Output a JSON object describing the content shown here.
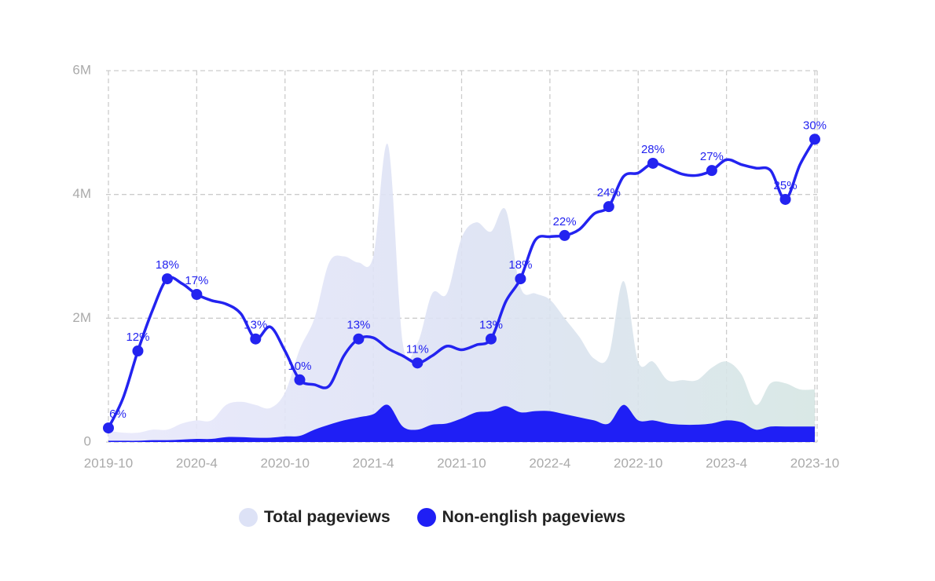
{
  "chart_data": {
    "type": "area-line",
    "x": [
      "2019-10",
      null,
      null,
      null,
      null,
      null,
      "2020-4",
      null,
      null,
      null,
      null,
      null,
      "2020-10",
      null,
      null,
      null,
      null,
      null,
      "2021-4",
      null,
      null,
      null,
      null,
      null,
      "2021-10",
      null,
      null,
      null,
      null,
      null,
      "2022-4",
      null,
      null,
      null,
      null,
      null,
      "2022-10",
      null,
      null,
      null,
      null,
      null,
      "2023-4",
      null,
      null,
      null,
      null,
      null,
      "2023-10"
    ],
    "ylim": [
      0,
      6000000
    ],
    "yticks": [
      0,
      {
        "value": 2000000,
        "label": "2M"
      },
      {
        "value": 4000000,
        "label": "4M"
      },
      {
        "value": 6000000,
        "label": "6M"
      }
    ],
    "y2lim": [
      4.83,
      35.7
    ],
    "grid": true,
    "legend": "bottom",
    "series": [
      {
        "name": "Total pageviews",
        "kind": "area",
        "color": "#dde2f6",
        "values": [
          180000,
          150000,
          150000,
          200000,
          200000,
          300000,
          350000,
          350000,
          600000,
          650000,
          600000,
          550000,
          800000,
          1500000,
          2000000,
          2900000,
          3000000,
          2900000,
          3000000,
          4800000,
          1600000,
          1600000,
          2400000,
          2400000,
          3300000,
          3550000,
          3400000,
          3750000,
          2500000,
          2400000,
          2300000,
          2000000,
          1700000,
          1350000,
          1400000,
          2600000,
          1300000,
          1300000,
          1000000,
          1000000,
          1000000,
          1200000,
          1300000,
          1100000,
          600000,
          950000,
          950000,
          850000,
          850000
        ]
      },
      {
        "name": "Non-english pageviews",
        "kind": "area",
        "color": "#1f1ff5",
        "values": [
          20000,
          20000,
          20000,
          30000,
          30000,
          40000,
          50000,
          50000,
          80000,
          80000,
          70000,
          70000,
          90000,
          100000,
          200000,
          280000,
          350000,
          400000,
          450000,
          600000,
          250000,
          200000,
          280000,
          300000,
          380000,
          480000,
          500000,
          580000,
          480000,
          500000,
          500000,
          450000,
          400000,
          350000,
          300000,
          600000,
          350000,
          350000,
          300000,
          280000,
          280000,
          300000,
          350000,
          320000,
          200000,
          250000,
          250000,
          250000,
          250000
        ]
      },
      {
        "kind": "line",
        "axis": "y2",
        "color": "#2323f0",
        "values": [
          6.0,
          8.5,
          12.4,
          15.8,
          18.4,
          18.0,
          17.1,
          16.6,
          16.3,
          15.5,
          13.4,
          14.4,
          12.4,
          10.0,
          9.6,
          9.5,
          12.0,
          13.4,
          13.5,
          12.6,
          12.0,
          11.4,
          12.0,
          12.8,
          12.5,
          12.9,
          13.4,
          16.5,
          18.4,
          21.6,
          21.9,
          22.0,
          22.5,
          23.8,
          24.4,
          26.9,
          27.2,
          28.0,
          27.6,
          27.1,
          27.0,
          27.4,
          28.3,
          27.9,
          27.6,
          27.4,
          25.0,
          27.9,
          30.0
        ],
        "value_labels": [
          "6%",
          null,
          "12%",
          null,
          "18%",
          null,
          "17%",
          null,
          null,
          null,
          "13%",
          null,
          null,
          "10%",
          null,
          null,
          null,
          "13%",
          null,
          null,
          null,
          "11%",
          null,
          null,
          null,
          null,
          "13%",
          null,
          "18%",
          null,
          null,
          "22%",
          null,
          null,
          "24%",
          null,
          null,
          "28%",
          null,
          null,
          null,
          "27%",
          null,
          null,
          null,
          null,
          "25%",
          null,
          "30%"
        ]
      }
    ]
  }
}
